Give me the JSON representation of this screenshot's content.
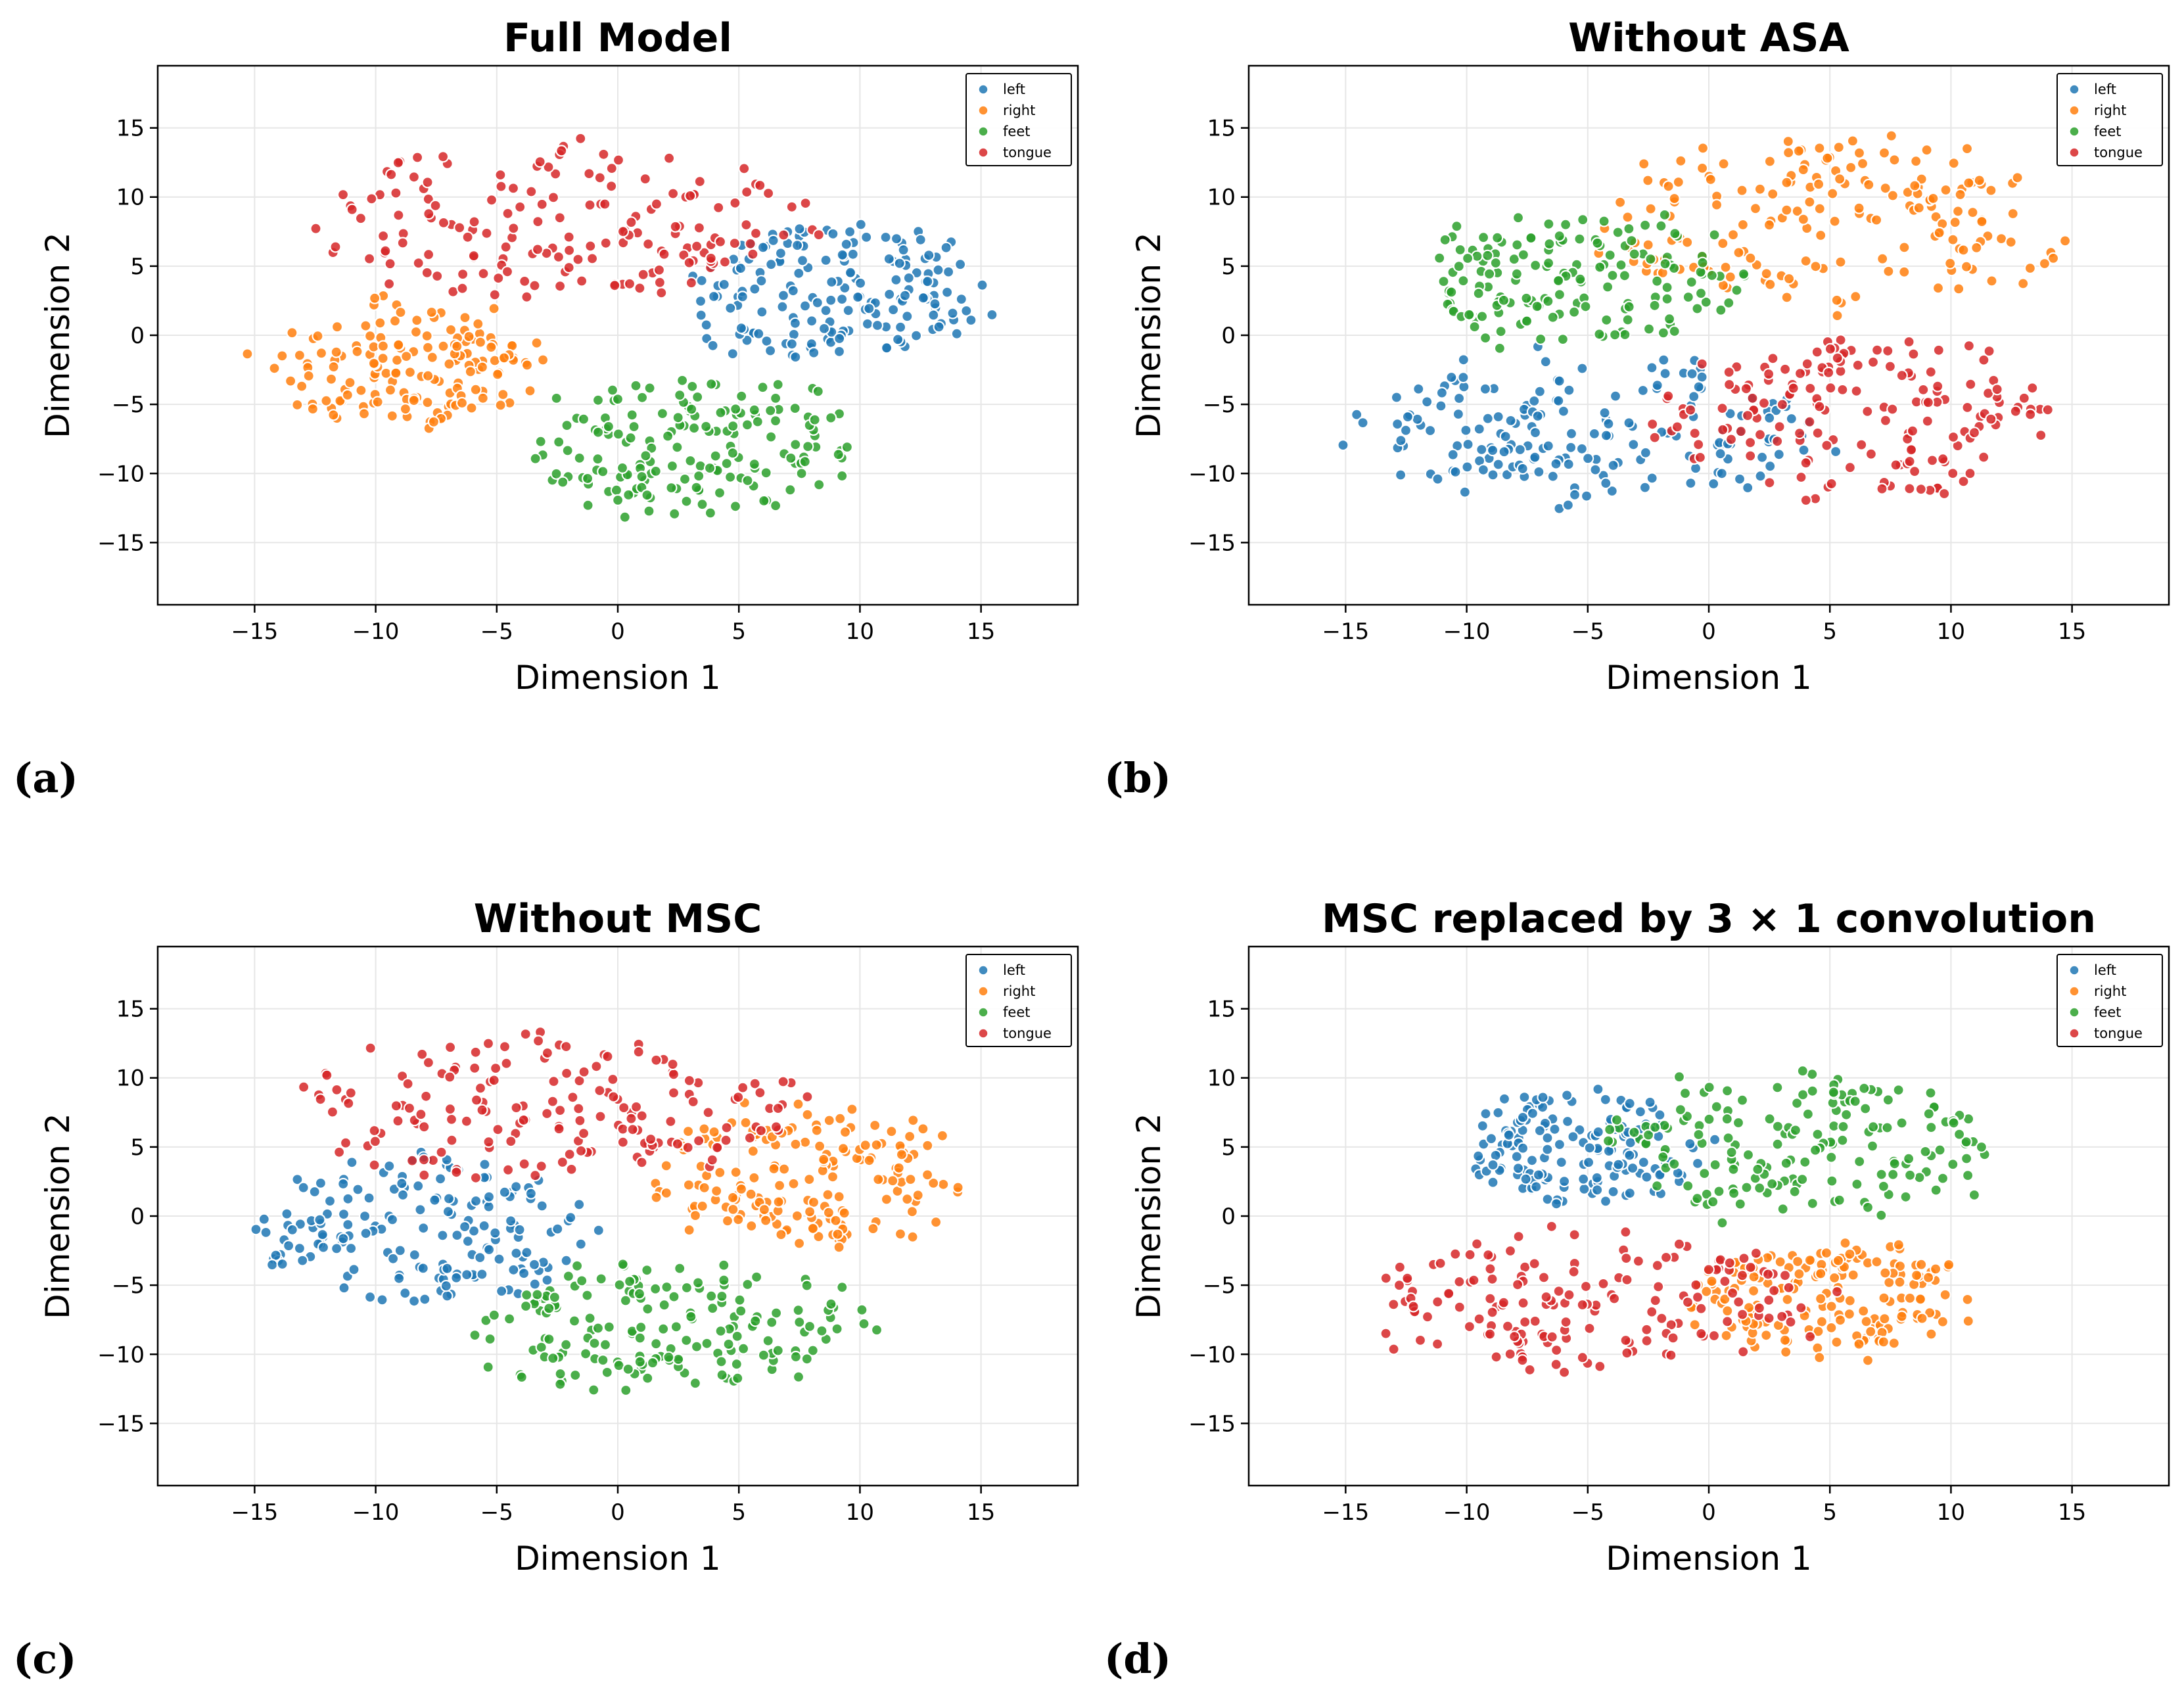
{
  "chart_data": [
    {
      "id": "a",
      "type": "scatter",
      "title": "Full Model",
      "panel_label": "(a)",
      "xlabel": "Dimension 1",
      "ylabel": "Dimension 2",
      "xlim": [
        -19,
        19
      ],
      "ylim": [
        -19.5,
        19.5
      ],
      "xticks": [
        -15,
        -10,
        -5,
        0,
        5,
        10,
        15
      ],
      "yticks": [
        -15,
        -10,
        -5,
        0,
        5,
        10,
        15
      ],
      "grid": true,
      "legend_position": "upper-right",
      "series": [
        {
          "name": "left",
          "color": "#1f77b4",
          "clusters": [
            {
              "cx": 9,
              "cy": 3,
              "rx": 6,
              "ry": 5,
              "n": 180
            }
          ]
        },
        {
          "name": "right",
          "color": "#ff7f0e",
          "clusters": [
            {
              "cx": -9,
              "cy": -2,
              "rx": 5.5,
              "ry": 4.5,
              "n": 160
            }
          ]
        },
        {
          "name": "feet",
          "color": "#2ca02c",
          "clusters": [
            {
              "cx": 3,
              "cy": -8,
              "rx": 6.5,
              "ry": 5,
              "n": 170
            }
          ]
        },
        {
          "name": "tongue",
          "color": "#d62728",
          "clusters": [
            {
              "cx": -2,
              "cy": 8,
              "rx": 10,
              "ry": 5.5,
              "n": 170
            }
          ]
        }
      ]
    },
    {
      "id": "b",
      "type": "scatter",
      "title": "Without ASA",
      "panel_label": "(b)",
      "xlabel": "Dimension 1",
      "ylabel": "Dimension 2",
      "xlim": [
        -19,
        19
      ],
      "ylim": [
        -19.5,
        19.5
      ],
      "xticks": [
        -15,
        -10,
        -5,
        0,
        5,
        10,
        15
      ],
      "yticks": [
        -15,
        -10,
        -5,
        0,
        5,
        10,
        15
      ],
      "grid": true,
      "legend_position": "upper-right",
      "series": [
        {
          "name": "left",
          "color": "#1f77b4",
          "clusters": [
            {
              "cx": -5,
              "cy": -7,
              "rx": 9,
              "ry": 5.5,
              "n": 180
            }
          ]
        },
        {
          "name": "right",
          "color": "#ff7f0e",
          "clusters": [
            {
              "cx": 5,
              "cy": 8,
              "rx": 9.5,
              "ry": 6,
              "n": 180
            }
          ]
        },
        {
          "name": "feet",
          "color": "#2ca02c",
          "clusters": [
            {
              "cx": -5,
              "cy": 4,
              "rx": 7,
              "ry": 5,
              "n": 160
            }
          ]
        },
        {
          "name": "tongue",
          "color": "#d62728",
          "clusters": [
            {
              "cx": 6,
              "cy": -6,
              "rx": 8,
              "ry": 5.5,
              "n": 170
            }
          ]
        }
      ]
    },
    {
      "id": "c",
      "type": "scatter",
      "title": "Without MSC",
      "panel_label": "(c)",
      "xlabel": "Dimension 1",
      "ylabel": "Dimension 2",
      "xlim": [
        -19,
        19
      ],
      "ylim": [
        -19.5,
        19.5
      ],
      "xticks": [
        -15,
        -10,
        -5,
        0,
        5,
        10,
        15
      ],
      "yticks": [
        -15,
        -10,
        -5,
        0,
        5,
        10,
        15
      ],
      "grid": true,
      "legend_position": "upper-right",
      "series": [
        {
          "name": "left",
          "color": "#1f77b4",
          "clusters": [
            {
              "cx": -8,
              "cy": -1,
              "rx": 7,
              "ry": 5,
              "n": 170
            }
          ]
        },
        {
          "name": "right",
          "color": "#ff7f0e",
          "clusters": [
            {
              "cx": 8,
              "cy": 3,
              "rx": 6.5,
              "ry": 5,
              "n": 170
            }
          ]
        },
        {
          "name": "feet",
          "color": "#2ca02c",
          "clusters": [
            {
              "cx": 2,
              "cy": -8,
              "rx": 8,
              "ry": 4.5,
              "n": 170
            }
          ]
        },
        {
          "name": "tongue",
          "color": "#d62728",
          "clusters": [
            {
              "cx": -3,
              "cy": 8,
              "rx": 10,
              "ry": 5,
              "n": 170
            }
          ]
        }
      ]
    },
    {
      "id": "d",
      "type": "scatter",
      "title": "MSC replaced by 3 × 1 convolution",
      "panel_label": "(d)",
      "xlabel": "Dimension 1",
      "ylabel": "Dimension 2",
      "xlim": [
        -19,
        19
      ],
      "ylim": [
        -19.5,
        19.5
      ],
      "xticks": [
        -15,
        -10,
        -5,
        0,
        5,
        10,
        15
      ],
      "yticks": [
        -15,
        -10,
        -5,
        0,
        5,
        10,
        15
      ],
      "grid": true,
      "legend_position": "upper-right",
      "series": [
        {
          "name": "left",
          "color": "#1f77b4",
          "clusters": [
            {
              "cx": -5,
              "cy": 5,
              "rx": 5,
              "ry": 4,
              "n": 160
            }
          ]
        },
        {
          "name": "right",
          "color": "#ff7f0e",
          "clusters": [
            {
              "cx": 5,
              "cy": -6,
              "rx": 5.5,
              "ry": 4,
              "n": 170
            }
          ]
        },
        {
          "name": "feet",
          "color": "#2ca02c",
          "clusters": [
            {
              "cx": 4,
              "cy": 5,
              "rx": 8,
              "ry": 5.5,
              "n": 170
            }
          ]
        },
        {
          "name": "tongue",
          "color": "#d62728",
          "clusters": [
            {
              "cx": -5,
              "cy": -6,
              "rx": 9,
              "ry": 5,
              "n": 170
            }
          ]
        }
      ]
    }
  ]
}
